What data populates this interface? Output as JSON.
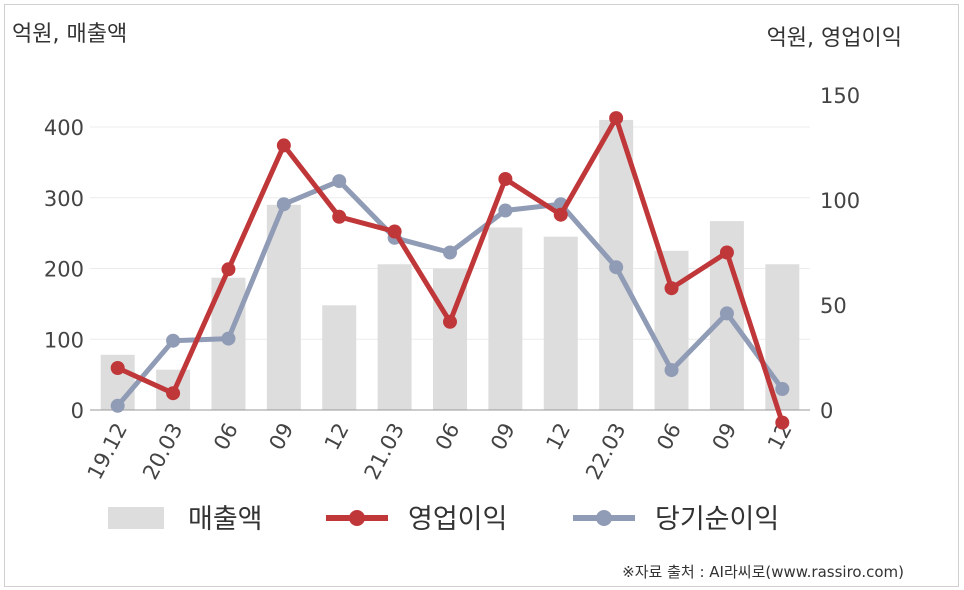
{
  "chart_data": {
    "type": "bar+line",
    "left_axis_title": "억원, 매출액",
    "right_axis_title": "억원, 영업이익",
    "categories": [
      "19.12",
      "20.03",
      "06",
      "09",
      "12",
      "21.03",
      "06",
      "09",
      "12",
      "22.03",
      "06",
      "09",
      "12"
    ],
    "ylim_left": [
      0,
      400
    ],
    "yticks_left": [
      0,
      100,
      200,
      300,
      400
    ],
    "ylim_right": [
      0,
      150
    ],
    "yticks_right": [
      0,
      50,
      100,
      150
    ],
    "grid": true,
    "legend_position": "bottom",
    "series": [
      {
        "name": "매출액",
        "kind": "bar",
        "axis": "left",
        "color": "#dddddd",
        "values": [
          78,
          57,
          187,
          290,
          148,
          206,
          200,
          258,
          245,
          410,
          225,
          267,
          206
        ]
      },
      {
        "name": "영업이익",
        "kind": "line",
        "axis": "right",
        "color": "#c0373a",
        "values": [
          20,
          8,
          67,
          126,
          92,
          85,
          42,
          110,
          93,
          139,
          58,
          75,
          -6
        ]
      },
      {
        "name": "당기순이익",
        "kind": "line",
        "axis": "right",
        "color": "#909bb5",
        "values": [
          2,
          33,
          34,
          98,
          109,
          82,
          75,
          95,
          98,
          68,
          19,
          46,
          10
        ]
      }
    ]
  },
  "source_note": "※자료 출처 : AI라씨로(www.rassiro.com)"
}
